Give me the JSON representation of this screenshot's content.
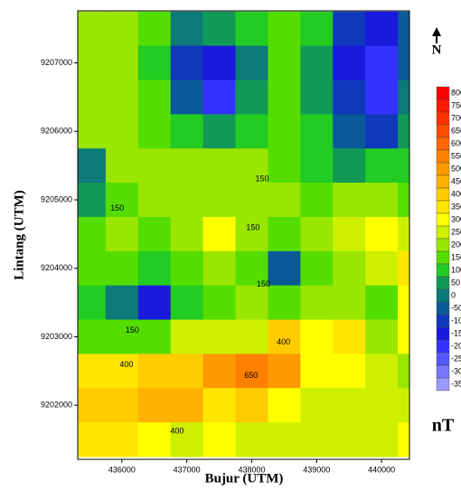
{
  "chart_data": {
    "type": "contour",
    "xlabel": "Bujur (UTM)",
    "ylabel": "Lintang (UTM)",
    "xlim": [
      435320,
      440430
    ],
    "ylim": [
      9201210,
      9207760
    ],
    "xticks": [
      436000,
      437000,
      438000,
      439000,
      440000
    ],
    "yticks": [
      9202000,
      9203000,
      9204000,
      9205000,
      9206000,
      9207000
    ],
    "x": [
      435500,
      436000,
      436500,
      437000,
      437500,
      438000,
      438500,
      439000,
      439500,
      440000,
      440500
    ],
    "y": [
      9207500,
      9207000,
      9206500,
      9206000,
      9205500,
      9205000,
      9204500,
      9204000,
      9203500,
      9203000,
      9202500,
      9202000,
      9201500
    ],
    "z": [
      [
        200,
        200,
        150,
        0,
        50,
        100,
        150,
        100,
        -100,
        -150,
        -50
      ],
      [
        200,
        200,
        100,
        -100,
        -150,
        0,
        150,
        50,
        -150,
        -200,
        -50
      ],
      [
        200,
        200,
        150,
        -50,
        -200,
        50,
        150,
        50,
        -100,
        -200,
        0
      ],
      [
        200,
        200,
        150,
        100,
        50,
        100,
        150,
        100,
        -50,
        -100,
        50
      ],
      [
        0,
        200,
        200,
        200,
        200,
        200,
        150,
        100,
        50,
        100,
        100
      ],
      [
        50,
        150,
        200,
        200,
        200,
        200,
        200,
        150,
        200,
        200,
        150
      ],
      [
        150,
        200,
        150,
        200,
        300,
        200,
        150,
        200,
        250,
        300,
        250
      ],
      [
        150,
        150,
        100,
        150,
        200,
        150,
        -50,
        150,
        200,
        250,
        350
      ],
      [
        100,
        0,
        -150,
        100,
        150,
        200,
        150,
        200,
        200,
        150,
        300
      ],
      [
        150,
        150,
        150,
        250,
        250,
        250,
        400,
        300,
        350,
        200,
        300
      ],
      [
        350,
        350,
        400,
        400,
        500,
        550,
        500,
        300,
        300,
        250,
        200
      ],
      [
        400,
        400,
        450,
        450,
        350,
        400,
        300,
        250,
        250,
        250,
        250
      ],
      [
        350,
        350,
        300,
        250,
        300,
        250,
        250,
        250,
        250,
        250,
        300
      ]
    ],
    "annotations": [
      {
        "text": "150",
        "x": 438160,
        "y": 9205305
      },
      {
        "text": "150",
        "x": 435930,
        "y": 9204870
      },
      {
        "text": "150",
        "x": 438020,
        "y": 9204590
      },
      {
        "text": "150",
        "x": 438180,
        "y": 9203765
      },
      {
        "text": "150",
        "x": 436160,
        "y": 9203090
      },
      {
        "text": "400",
        "x": 436070,
        "y": 9202590
      },
      {
        "text": "400",
        "x": 436850,
        "y": 9201620
      },
      {
        "text": "650",
        "x": 437990,
        "y": 9202430
      },
      {
        "text": "400",
        "x": 438490,
        "y": 9202920
      }
    ],
    "north_label": "N",
    "colorbar": {
      "label": "nT",
      "ticks": [
        800,
        750,
        700,
        650,
        600,
        550,
        500,
        450,
        400,
        350,
        300,
        250,
        200,
        150,
        100,
        50,
        0,
        -50,
        -100,
        -150,
        -200,
        -250,
        -300,
        -350
      ],
      "colors": [
        "#ff0000",
        "#ff1a00",
        "#ff3300",
        "#ff4d00",
        "#ff6600",
        "#ff8000",
        "#ff9900",
        "#ffb300",
        "#ffcc00",
        "#ffe600",
        "#ffff00",
        "#ccf000",
        "#99e600",
        "#55dd00",
        "#22cc22",
        "#119955",
        "#0b7a78",
        "#0a5a9a",
        "#1038bb",
        "#1a1add",
        "#3333ff",
        "#5555ff",
        "#7777ff",
        "#9999ff"
      ]
    }
  }
}
